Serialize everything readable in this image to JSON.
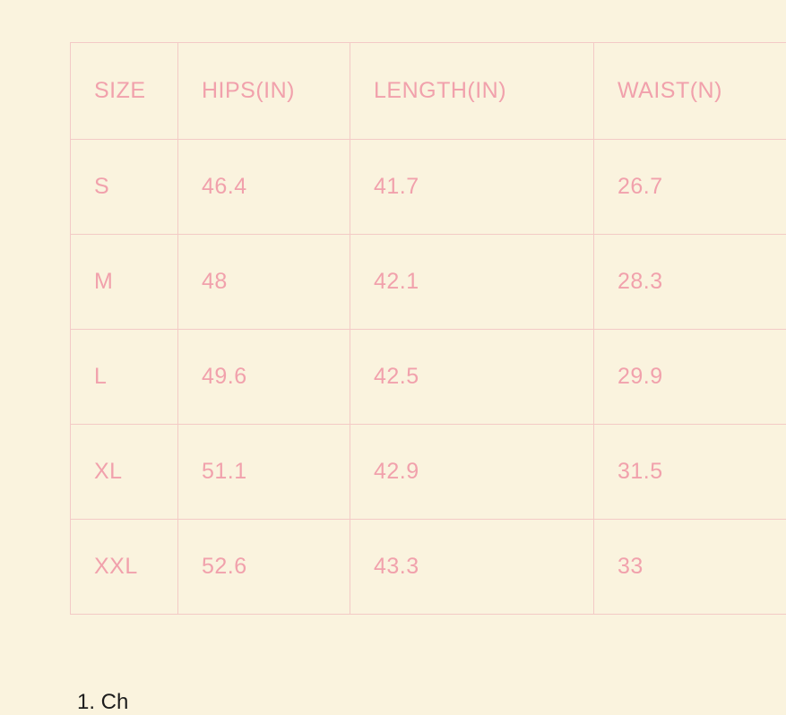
{
  "colors": {
    "background": "#FAF3DE",
    "text_pink": "#F1A1AC",
    "border_pink": "#F3CAC6",
    "caption_dark": "#1c1c1c"
  },
  "chart_data": {
    "type": "table",
    "title": "",
    "columns": [
      "SIZE",
      "HIPS(IN)",
      "LENGTH(IN)",
      "WAIST(N)"
    ],
    "rows": [
      [
        "S",
        "46.4",
        "41.7",
        "26.7"
      ],
      [
        "M",
        "48",
        "42.1",
        "28.3"
      ],
      [
        "L",
        "49.6",
        "42.5",
        "29.9"
      ],
      [
        "XL",
        "51.1",
        "42.9",
        "31.5"
      ],
      [
        "XXL",
        "52.6",
        "43.3",
        "33"
      ]
    ],
    "layout": {
      "grid": "on",
      "header_position": "top",
      "text_align": "left"
    }
  },
  "footer": {
    "partial_caption": "1. Ch"
  }
}
